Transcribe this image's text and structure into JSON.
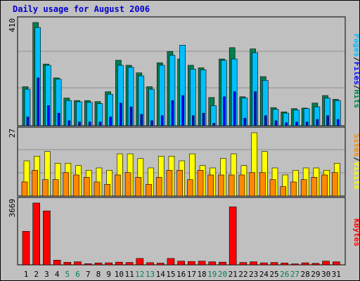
{
  "title": "Daily usage for August 2006",
  "colors": {
    "hits": "#007f4f",
    "files": "#00bfff",
    "pages": "#0000ff",
    "visits": "#ffff00",
    "sites": "#ff8800",
    "kbytes": "#ff0000",
    "weekend_label": "#007f4f",
    "weekday_label": "#000000",
    "title": "#0000cc"
  },
  "labels": {
    "pages": "Pages",
    "files": "Files",
    "hits": "Hits",
    "sites": "Sites",
    "visits": "Visits",
    "kbytes": "KBytes",
    "sep": "/"
  },
  "chart_data": [
    {
      "type": "bar",
      "panel": "hits_files_pages",
      "ymax_label": "410",
      "ylim": [
        0,
        410
      ],
      "categories": [
        "1",
        "2",
        "3",
        "4",
        "5",
        "6",
        "7",
        "8",
        "9",
        "10",
        "11",
        "12",
        "13",
        "14",
        "15",
        "16",
        "17",
        "18",
        "19",
        "20",
        "21",
        "22",
        "23",
        "24",
        "25",
        "26",
        "27",
        "28",
        "29",
        "30",
        "31"
      ],
      "series": [
        {
          "name": "Hits",
          "values": [
            155,
            410,
            245,
            190,
            110,
            100,
            100,
            96,
            135,
            260,
            240,
            210,
            155,
            250,
            295,
            265,
            240,
            230,
            112,
            265,
            310,
            115,
            305,
            195,
            72,
            55,
            68,
            70,
            90,
            120,
            105
          ]
        },
        {
          "name": "Files",
          "values": [
            145,
            390,
            240,
            185,
            100,
            95,
            93,
            88,
            125,
            240,
            232,
            198,
            145,
            240,
            280,
            320,
            225,
            222,
            80,
            260,
            265,
            110,
            290,
            180,
            65,
            50,
            62,
            68,
            75,
            110,
            100
          ]
        },
        {
          "name": "Pages",
          "values": [
            35,
            190,
            80,
            50,
            20,
            15,
            15,
            15,
            35,
            90,
            75,
            45,
            20,
            40,
            100,
            120,
            40,
            50,
            10,
            115,
            135,
            30,
            135,
            40,
            20,
            12,
            15,
            15,
            25,
            40,
            25
          ]
        }
      ]
    },
    {
      "type": "bar",
      "panel": "visits_sites",
      "ymax_label": "27",
      "ylim": [
        0,
        27
      ],
      "categories": [
        "1",
        "2",
        "3",
        "4",
        "5",
        "6",
        "7",
        "8",
        "9",
        "10",
        "11",
        "12",
        "13",
        "14",
        "15",
        "16",
        "17",
        "18",
        "19",
        "20",
        "21",
        "22",
        "23",
        "24",
        "25",
        "26",
        "27",
        "28",
        "29",
        "30",
        "31"
      ],
      "series": [
        {
          "name": "Visits",
          "values": [
            15,
            17,
            19,
            14,
            14,
            13,
            11,
            12,
            11,
            18,
            18,
            16,
            12,
            17,
            17,
            15,
            18,
            13,
            12,
            16,
            18,
            13,
            27,
            19,
            12,
            9,
            11,
            12,
            12,
            11,
            14
          ]
        },
        {
          "name": "Sites",
          "values": [
            6,
            11,
            7,
            7,
            10,
            9,
            8,
            6,
            5,
            9,
            10,
            8,
            5,
            8,
            11,
            11,
            7,
            11,
            9,
            9,
            9,
            9,
            10,
            10,
            7,
            4,
            6,
            7,
            8,
            9,
            10
          ]
        }
      ]
    },
    {
      "type": "bar",
      "panel": "kbytes",
      "ymax_label": "3669",
      "ylim": [
        0,
        3669
      ],
      "categories": [
        "1",
        "2",
        "3",
        "4",
        "5",
        "6",
        "7",
        "8",
        "9",
        "10",
        "11",
        "12",
        "13",
        "14",
        "15",
        "16",
        "17",
        "18",
        "19",
        "20",
        "21",
        "22",
        "23",
        "24",
        "25",
        "26",
        "27",
        "28",
        "29",
        "30",
        "31"
      ],
      "series": [
        {
          "name": "KBytes",
          "values": [
            1990,
            3669,
            3200,
            280,
            150,
            180,
            70,
            110,
            120,
            160,
            140,
            380,
            130,
            100,
            380,
            220,
            200,
            220,
            180,
            160,
            3440,
            140,
            180,
            120,
            140,
            110,
            60,
            120,
            90,
            220,
            180
          ]
        }
      ]
    }
  ]
}
